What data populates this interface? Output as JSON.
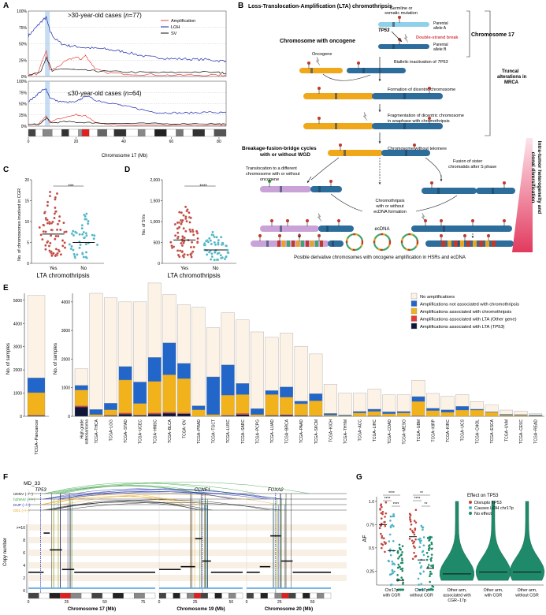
{
  "panels": {
    "A": {
      "label": "A",
      "top_title": ">30-year-old cases (",
      "top_n": "n",
      "top_count": "=77)",
      "bottom_title": "≤30-year-old cases (",
      "bottom_n": "n",
      "bottom_count": "=64)",
      "legend": [
        {
          "name": "Amplification",
          "color": "#e8453c"
        },
        {
          "name": "LOH",
          "color": "#1a2aa8"
        },
        {
          "name": "SV",
          "color": "#111111"
        }
      ],
      "yticks": [
        "100%",
        "75%",
        "50%",
        "25%",
        "0%"
      ],
      "xticks": [
        "0",
        "20",
        "40",
        "60",
        "80"
      ],
      "xlabel": "Chromosome 17 (Mb)",
      "chart_data": {
        "type": "line",
        "xlabel": "Chromosome 17 (Mb)",
        "xlim": [
          0,
          83
        ],
        "ylim": [
          0,
          100
        ],
        "subplots": [
          {
            "title": ">30-year-old cases (n=77)",
            "series": [
              {
                "name": "LOH",
                "x": [
                  0,
                  2,
                  4,
                  6,
                  7.5,
                  9,
                  11,
                  14,
                  17,
                  20,
                  24,
                  28,
                  32,
                  36,
                  40,
                  45,
                  50,
                  55,
                  60,
                  65,
                  70,
                  75,
                  80,
                  83
                ],
                "values": [
                  62,
                  70,
                  78,
                  86,
                  90,
                  70,
                  58,
                  50,
                  47,
                  46,
                  44,
                  43,
                  42,
                  40,
                  38,
                  34,
                  30,
                  29,
                  27,
                  27,
                  26,
                  26,
                  24,
                  24
                ]
              },
              {
                "name": "Amplification",
                "x": [
                  0,
                  4,
                  7.5,
                  9,
                  12,
                  16,
                  20,
                  22,
                  24,
                  26,
                  28,
                  32,
                  40,
                  50,
                  60,
                  70,
                  80,
                  83
                ],
                "values": [
                  2,
                  4,
                  40,
                  9,
                  14,
                  24,
                  30,
                  26,
                  32,
                  22,
                  12,
                  6,
                  4,
                  3,
                  2,
                  2,
                  2,
                  2
                ]
              },
              {
                "name": "SV",
                "x": [
                  0,
                  5,
                  7.5,
                  10,
                  15,
                  20,
                  25,
                  30,
                  40,
                  50,
                  60,
                  70,
                  80,
                  83
                ],
                "values": [
                  3,
                  6,
                  30,
                  8,
                  12,
                  10,
                  9,
                  8,
                  7,
                  6,
                  6,
                  7,
                  6,
                  5
                ]
              }
            ]
          },
          {
            "title": "≤30-year-old cases (n=64)",
            "series": [
              {
                "name": "LOH",
                "x": [
                  0,
                  2,
                  4,
                  6,
                  7.5,
                  9,
                  12,
                  16,
                  20,
                  22,
                  24,
                  28,
                  32,
                  36,
                  40,
                  45,
                  50,
                  55,
                  60,
                  65,
                  70,
                  75,
                  80,
                  83
                ],
                "values": [
                  55,
                  62,
                  72,
                  80,
                  82,
                  64,
                  56,
                  53,
                  54,
                  60,
                  68,
                  58,
                  54,
                  50,
                  45,
                  40,
                  34,
                  30,
                  30,
                  29,
                  30,
                  31,
                  30,
                  30
                ]
              },
              {
                "name": "Amplification",
                "x": [
                  0,
                  4,
                  7.5,
                  9,
                  12,
                  16,
                  20,
                  22,
                  24,
                  26,
                  28,
                  32,
                  40,
                  50,
                  60,
                  70,
                  80,
                  83
                ],
                "values": [
                  2,
                  4,
                  22,
                  8,
                  15,
                  20,
                  26,
                  22,
                  24,
                  16,
                  10,
                  5,
                  3,
                  2,
                  2,
                  2,
                  2,
                  2
                ]
              },
              {
                "name": "SV",
                "x": [
                  0,
                  5,
                  7.5,
                  10,
                  15,
                  20,
                  25,
                  30,
                  40,
                  50,
                  60,
                  70,
                  80,
                  83
                ],
                "values": [
                  3,
                  5,
                  18,
                  7,
                  10,
                  9,
                  8,
                  7,
                  6,
                  6,
                  5,
                  6,
                  5,
                  4
                ]
              }
            ]
          }
        ]
      }
    },
    "B": {
      "label": "B",
      "title": "Loss-Translocation-Amplification (LTA) chromothripsis",
      "germline": "Germline or",
      "germline2": "somatic mutation",
      "parental_a": "Parental",
      "parental_a2": "allele A",
      "parental_b": "Parental",
      "parental_b2": "allele B",
      "chr17": "Chromosome 17",
      "tp53": "TP53",
      "dsb": "Double-strand break",
      "chr_oncogene": "Chromosome with oncogene",
      "oncogene": "Oncogene",
      "biallelic": "Biallelic inactivation of",
      "biallelic_gene": "TP53",
      "dicentric": "Formation of dicentric chromosome",
      "frag1": "Fragmentation of dicentric chromosome",
      "frag2": "in anaphase with chromothripsis",
      "truncal1": "Truncal",
      "truncal2": "alterations in",
      "truncal3": "MRCA",
      "telomere": "Chromosome without telomere",
      "bfb1": "Breakage-fusion-bridge cycles",
      "bfb2": "with or without WGD",
      "trans1": "Translocation to a different",
      "trans2": "chromosome with or without",
      "trans3": "oncogene",
      "fusion1": "Fusion of sister",
      "fusion2": "chromatids after S phase",
      "ct1": "Chromothripsis",
      "ct2": "with or without",
      "ct3": "ecDNA formation",
      "ecdna": "ecDNA",
      "hetero1": "Intra-tumor heterogeneity and",
      "hetero2": "clonal diversification",
      "bottom": "Posible derivative chromosomes with oncogene amplification in HSRs and ecDNA"
    },
    "C": {
      "label": "C",
      "ylabel": "No. of chromosomes involved in CGR",
      "yticks": [
        "0",
        "5",
        "10",
        "15",
        "20"
      ],
      "cats": [
        "Yes",
        "No"
      ],
      "sig": "***",
      "xlabel": "LTA chromothripsis",
      "chart_data": {
        "type": "scatter",
        "categories": [
          "Yes",
          "No"
        ],
        "ylim": [
          0,
          20
        ],
        "median": [
          7,
          5
        ],
        "ylabel": "No. of chromosomes involved in CGR",
        "xlabel": "LTA chromothripsis",
        "significance": "***"
      }
    },
    "D": {
      "label": "D",
      "ylabel": "No. of SVs",
      "yticks": [
        "0",
        "500",
        "1,000",
        "1,500",
        "2,000"
      ],
      "cats": [
        "Yes",
        "No"
      ],
      "sig": "****",
      "xlabel": "LTA chromothripsis",
      "chart_data": {
        "type": "scatter",
        "categories": [
          "Yes",
          "No"
        ],
        "ylim": [
          0,
          2000
        ],
        "median": [
          560,
          320
        ],
        "ylabel": "No. of SVs",
        "xlabel": "LTA chromothripsis",
        "significance": "****"
      }
    },
    "E": {
      "label": "E",
      "ylabel": "No. of samples",
      "yticks_left": [
        "0",
        "1000",
        "2000",
        "3000",
        "4000",
        "5000"
      ],
      "yticks_right": [
        "0",
        "1000",
        "2000",
        "3000",
        "4000"
      ],
      "legend": [
        {
          "name": "No amplifications",
          "color": "#fdf2e6"
        },
        {
          "name": "Amplifications not associated with chromothripsis",
          "color": "#2166c8"
        },
        {
          "name": "Amplifications associated with chromothripsis",
          "color": "#f2b21c"
        },
        {
          "name": "Amplifications associated with LTA (Other gene)",
          "color": "#e63b2e"
        },
        {
          "name": "Amplifications associated with LTA (",
          "color": "#0f1538"
        }
      ],
      "legend_gene": "TP53",
      "legend_close": ")",
      "chart_data": {
        "type": "bar",
        "stacked": true,
        "ylabel": "No. of samples",
        "pancancer": {
          "category": "TCGA−Pancancer",
          "none": 3550,
          "not_ct": 640,
          "ct": 970,
          "lta_other": 20,
          "lta_tp53": 30
        },
        "categories": [
          "High grade osteosarcoma",
          "TCGA−THCA",
          "TCGA−LGG",
          "TCGA−STAD",
          "TCGA−UCEC",
          "TCGA−HNSC",
          "TCGA−BLCA",
          "TCGA−OV",
          "TCGA−PRAD",
          "TCGA−TGCT",
          "TCGA−LUSC",
          "TCGA−SARC",
          "TCGA−PCPG",
          "TCGA−LUAD",
          "TCGA−BRCA",
          "TCGA−PAAD",
          "TCGA−SKCM",
          "TCGA−KICH",
          "TCGA−THYM",
          "TCGA−ACC",
          "TCGA−LIHC",
          "TCGA−COAD",
          "TCGA−MESO",
          "TCGA−GBM",
          "TCGA−KIRP",
          "TCGA−KIRC",
          "TCGA−UCS",
          "TCGA−CHOL",
          "TCGA−ESCA",
          "TCGA−UVM",
          "TCGA−CESC",
          "TCGA−READ"
        ],
        "series": [
          {
            "name": "No amplifications",
            "values": [
              580,
              4060,
              3680,
              2260,
              2800,
              2600,
              1680,
              2050,
              3440,
              1720,
              1820,
              2220,
              2680,
              1860,
              1880,
              1920,
              1390,
              1020,
              760,
              640,
              700,
              590,
              580,
              570,
              520,
              470,
              410,
              270,
              230,
              150,
              120,
              40
            ]
          },
          {
            "name": "Amplifications not associated with chromothripsis",
            "values": [
              160,
              180,
              230,
              470,
              750,
              840,
              1120,
              530,
              140,
              1320,
              1060,
              390,
              210,
              140,
              360,
              90,
              250,
              60,
              30,
              50,
              80,
              70,
              50,
              170,
              80,
              90,
              130,
              30,
              20,
              30,
              20,
              30
            ]
          },
          {
            "name": "Amplifications associated with chromothripsis",
            "values": [
              550,
              60,
              190,
              1150,
              400,
              1100,
              1300,
              1200,
              230,
              60,
              700,
              660,
              60,
              720,
              610,
              410,
              520,
              40,
              20,
              120,
              150,
              90,
              120,
              500,
              200,
              140,
              220,
              220,
              140,
              40,
              40,
              20
            ]
          },
          {
            "name": "Amplifications associated with LTA (Other gene)",
            "values": [
              40,
              0,
              20,
              40,
              20,
              40,
              40,
              30,
              0,
              0,
              20,
              40,
              0,
              20,
              20,
              10,
              10,
              0,
              0,
              0,
              10,
              0,
              0,
              10,
              0,
              0,
              0,
              0,
              0,
              0,
              0,
              0
            ]
          },
          {
            "name": "Amplifications associated with LTA (TP53)",
            "values": [
              330,
              0,
              20,
              80,
              30,
              80,
              110,
              90,
              0,
              0,
              20,
              60,
              0,
              20,
              40,
              20,
              10,
              0,
              0,
              0,
              10,
              0,
              0,
              10,
              0,
              0,
              0,
              0,
              0,
              0,
              0,
              0
            ]
          }
        ]
      }
    },
    "F": {
      "label": "F",
      "sample": "MD_33",
      "sv_labels": [
        {
          "name": "t2tINV (−/−)",
          "color": "#111111"
        },
        {
          "name": "h2hINV (+/+)",
          "color": "#2e9e3a"
        },
        {
          "name": "DUP (−/+)",
          "color": "#1a2aa8"
        },
        {
          "name": "DEL (+/−)",
          "color": "#e8a620"
        }
      ],
      "genes": [
        "TP53",
        "CCNE1",
        "FOXA2"
      ],
      "ylabel": "Copy number",
      "yticks": [
        ">=10",
        "8",
        "6",
        "4",
        "2",
        "0"
      ],
      "chroms": [
        {
          "label": "Chromosome 17 (Mb)",
          "ticks": [
            "0",
            "25",
            "50",
            "75"
          ]
        },
        {
          "label": "Chromosome 19 (Mb)",
          "ticks": [
            "0",
            "25",
            "50"
          ]
        },
        {
          "label": "Chromosome 20 (Mb)",
          "ticks": [
            "0",
            "25",
            "50"
          ]
        }
      ]
    },
    "G": {
      "label": "G",
      "ylabel": "AF",
      "yticks": [
        "1.0",
        "0.75",
        "0.5",
        "0.25"
      ],
      "legend_title": "Effect on TP53",
      "legend": [
        {
          "name": "Disrupts TP53",
          "color": "#c2453c"
        },
        {
          "name": "Causes LOH chr17p",
          "color": "#4bb3c6"
        },
        {
          "name": "No effect",
          "color": "#1f8a6a"
        }
      ],
      "sigs": [
        "****",
        "****",
        "****",
        "**",
        "****",
        "**"
      ],
      "groups": [
        {
          "l1": "Chr17p",
          "l2": "with CGR",
          "l3": ""
        },
        {
          "l1": "Chr17p",
          "l2": "without CGR",
          "l3": ""
        },
        {
          "l1": "Other arm,",
          "l2": "associated with",
          "l3": "CGR−17p"
        },
        {
          "l1": "Other arm,",
          "l2": "with CGR",
          "l3": ""
        },
        {
          "l1": "Other arm,",
          "l2": "without CGR",
          "l3": ""
        }
      ]
    }
  }
}
